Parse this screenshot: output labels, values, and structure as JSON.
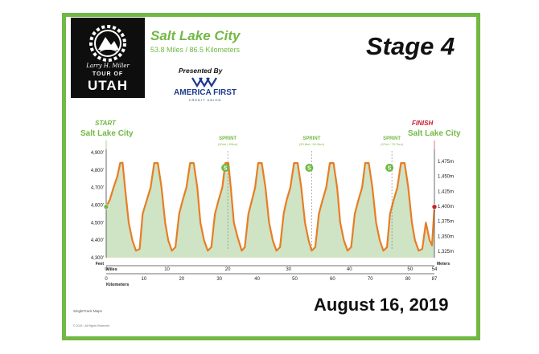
{
  "logo": {
    "signature": "Larry H. Miller",
    "tour": "TOUR OF",
    "utah": "UTAH"
  },
  "header": {
    "city": "Salt Lake City",
    "distance": "53.8 Miles / 86.5 Kilometers",
    "presented_by": "Presented By",
    "sponsor_name": "AMERICA FIRST",
    "sponsor_sub": "CREDIT UNION",
    "stage": "Stage 4"
  },
  "date": "August 16, 2019",
  "credit": "SingleTrack Maps",
  "copyright": "© 2019 - All Rights Reserved",
  "colors": {
    "frame": "#72b844",
    "profile_line": "#e87d24",
    "profile_fill": "#cfe3c5",
    "finish": "#c8202e"
  },
  "chart_data": {
    "type": "area",
    "start_label": "START",
    "start_city": "Salt Lake City",
    "finish_label": "FINISH",
    "finish_city": "Salt Lake City",
    "left_axis": {
      "unit": "Feet",
      "ylim": [
        4300,
        4900
      ],
      "ticks": [
        "4,300'",
        "4,400'",
        "4,500'",
        "4,600'",
        "4,700'",
        "4,800'",
        "4,900'"
      ]
    },
    "right_axis": {
      "unit": "Meters",
      "ticks": [
        "1,325m",
        "1,350m",
        "1,375m",
        "1,400m",
        "1,425m",
        "1,450m",
        "1,475m"
      ]
    },
    "x_miles": {
      "label": "Miles",
      "range": [
        0,
        54
      ],
      "ticks": [
        "0",
        "10",
        "20",
        "30",
        "40",
        "50",
        "54"
      ]
    },
    "x_km": {
      "label": "Kilometers",
      "range": [
        0,
        87
      ],
      "ticks": [
        "0",
        "10",
        "20",
        "30",
        "40",
        "50",
        "60",
        "70",
        "80",
        "87"
      ]
    },
    "profile": {
      "x": [
        0,
        0.6,
        1.2,
        1.8,
        2.3,
        2.7,
        3.1,
        3.7,
        4.3,
        4.9,
        5.5,
        6.0,
        6.7,
        7.3,
        7.9,
        8.5,
        9.1,
        9.7,
        10.2,
        10.8,
        11.4,
        12.0,
        12.6,
        13.2,
        13.8,
        14.4,
        15.0,
        15.5,
        16.1,
        16.7,
        17.3,
        17.9,
        18.5,
        19.1,
        19.6,
        20.1,
        20.5,
        21.0,
        21.6,
        22.3,
        22.8,
        23.4,
        24.0,
        24.5,
        25.0,
        25.6,
        26.2,
        26.8,
        27.4,
        28.0,
        28.6,
        29.2,
        29.7,
        30.3,
        30.9,
        31.5,
        32.1,
        32.7,
        33.3,
        33.8,
        34.4,
        35.0,
        35.6,
        36.2,
        36.8,
        37.4,
        38.0,
        38.5,
        39.1,
        39.7,
        40.3,
        40.9,
        41.5,
        42.1,
        42.6,
        43.2,
        43.8,
        44.4,
        45.0,
        45.6,
        46.2,
        46.7,
        47.3,
        47.9,
        48.5,
        49.1,
        49.7,
        50.3,
        50.8,
        51.4,
        52.0,
        52.6,
        53.2,
        53.6,
        54.0
      ],
      "y": [
        4590,
        4630,
        4700,
        4760,
        4840,
        4842,
        4700,
        4500,
        4400,
        4340,
        4350,
        4550,
        4630,
        4700,
        4840,
        4840,
        4700,
        4500,
        4400,
        4340,
        4360,
        4550,
        4630,
        4700,
        4840,
        4840,
        4700,
        4500,
        4400,
        4340,
        4360,
        4550,
        4630,
        4700,
        4840,
        4840,
        4700,
        4500,
        4420,
        4340,
        4360,
        4550,
        4630,
        4700,
        4840,
        4840,
        4700,
        4500,
        4400,
        4340,
        4360,
        4550,
        4630,
        4700,
        4840,
        4840,
        4700,
        4500,
        4400,
        4340,
        4360,
        4550,
        4630,
        4700,
        4840,
        4840,
        4700,
        4500,
        4400,
        4340,
        4360,
        4550,
        4630,
        4700,
        4840,
        4840,
        4700,
        4500,
        4400,
        4340,
        4360,
        4550,
        4630,
        4700,
        4840,
        4840,
        4700,
        4500,
        4400,
        4340,
        4350,
        4500,
        4400,
        4370,
        4590
      ]
    },
    "sprints": [
      {
        "label": "SPRINT",
        "distance": "(20mi / 32km)",
        "mile": 20
      },
      {
        "label": "SPRINT",
        "distance": "(33.8mi / 54.3km)",
        "mile": 33.8
      },
      {
        "label": "SPRINT",
        "distance": "(47mi / 75.7km)",
        "mile": 47
      }
    ]
  }
}
